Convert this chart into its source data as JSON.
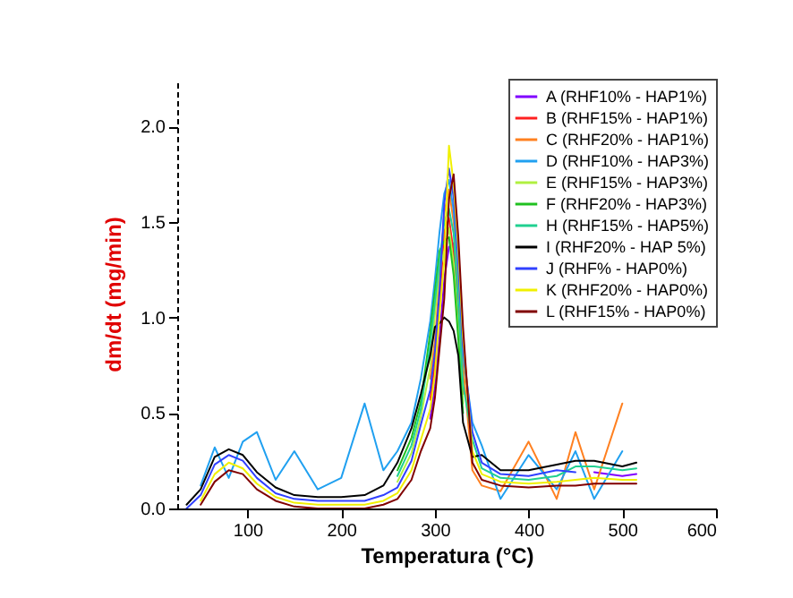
{
  "chart_data": {
    "type": "line",
    "xlabel": "Temperatura (°C)",
    "ylabel": "dm/dt (mg/min)",
    "x": [
      35,
      50,
      65,
      80,
      95,
      110,
      130,
      150,
      175,
      200,
      225,
      245,
      260,
      275,
      285,
      295,
      300,
      305,
      310,
      315,
      320,
      325,
      330,
      340,
      350,
      370,
      400,
      430,
      450,
      470,
      500,
      515
    ],
    "xlim": [
      25,
      600
    ],
    "xticks": [
      100,
      200,
      300,
      400,
      500,
      600
    ],
    "ylim": [
      0,
      2.25
    ],
    "yticks": [
      {
        "value": 0,
        "label": "0.0"
      },
      0.5,
      {
        "value": 1,
        "label": "1.0"
      },
      1.5,
      {
        "value": 2,
        "label": "2.0"
      }
    ],
    "legend": "top right",
    "marker": "none",
    "line_style": "solid",
    "grid": false,
    "series": [
      {
        "name": "A (RHF10% - HAP1%)",
        "color": "#8000ff",
        "values": [
          null,
          null,
          null,
          null,
          null,
          null,
          null,
          null,
          null,
          null,
          null,
          null,
          null,
          null,
          null,
          0.47,
          0.64,
          0.9,
          1.2,
          1.37,
          1.39,
          1.12,
          null,
          null,
          null,
          null,
          null,
          null,
          null,
          0.19,
          0.17,
          0.18
        ]
      },
      {
        "name": "B (RHF15% - HAP1%)",
        "color": "#ff2020",
        "values": [
          null,
          null,
          null,
          null,
          null,
          null,
          null,
          null,
          null,
          null,
          null,
          null,
          null,
          null,
          null,
          0.57,
          0.76,
          1.08,
          1.45,
          1.52,
          1.34,
          1.0,
          0.6,
          null,
          null,
          null,
          null,
          null,
          null,
          null,
          null,
          null
        ]
      },
      {
        "name": "C (RHF20% - HAP1%)",
        "color": "#ff8020",
        "values": [
          null,
          null,
          null,
          null,
          null,
          null,
          null,
          null,
          null,
          null,
          null,
          null,
          null,
          null,
          null,
          0.68,
          0.88,
          1.2,
          1.55,
          1.67,
          1.5,
          1.18,
          0.75,
          0.2,
          0.12,
          0.09,
          0.35,
          0.05,
          0.4,
          0.1,
          0.55,
          null
        ]
      },
      {
        "name": "D (RHF10% - HAP3%)",
        "color": "#20a0f0",
        "values": [
          null,
          0.12,
          0.32,
          0.16,
          0.35,
          0.4,
          0.15,
          0.3,
          0.1,
          0.16,
          0.55,
          0.2,
          0.3,
          0.45,
          0.68,
          0.98,
          1.2,
          1.45,
          1.65,
          1.72,
          1.56,
          1.24,
          0.8,
          0.45,
          0.33,
          0.05,
          0.28,
          0.1,
          0.3,
          0.05,
          0.3,
          null
        ]
      },
      {
        "name": "E (RHF15% - HAP3%)",
        "color": "#b0f040",
        "values": [
          null,
          null,
          null,
          null,
          null,
          null,
          null,
          null,
          null,
          null,
          null,
          null,
          0.14,
          0.29,
          0.48,
          0.74,
          1.02,
          1.25,
          1.35,
          1.47,
          1.28,
          0.94,
          0.55,
          null,
          null,
          null,
          null,
          null,
          null,
          null,
          null,
          null
        ]
      },
      {
        "name": "F (RHF20% - HAP3%)",
        "color": "#20c020",
        "values": [
          null,
          null,
          null,
          null,
          null,
          null,
          null,
          null,
          null,
          null,
          null,
          null,
          0.2,
          0.37,
          0.56,
          0.92,
          1.14,
          1.35,
          1.4,
          1.42,
          1.22,
          0.88,
          0.5,
          null,
          null,
          null,
          null,
          null,
          null,
          null,
          null,
          null
        ]
      },
      {
        "name": "H (RHF15% - HAP5%)",
        "color": "#20d090",
        "values": [
          null,
          null,
          null,
          null,
          null,
          null,
          null,
          null,
          null,
          null,
          null,
          null,
          0.17,
          0.33,
          0.52,
          0.86,
          1.08,
          1.3,
          1.5,
          1.57,
          1.44,
          1.06,
          0.65,
          0.36,
          0.21,
          0.16,
          0.15,
          0.17,
          0.22,
          0.22,
          0.2,
          0.21
        ]
      },
      {
        "name": "I (RHF20% - HAP 5%)",
        "color": "#000000",
        "values": [
          0.02,
          0.1,
          0.27,
          0.31,
          0.28,
          0.19,
          0.11,
          0.07,
          0.06,
          0.06,
          0.07,
          0.12,
          0.24,
          0.42,
          0.6,
          0.8,
          0.95,
          0.97,
          1.0,
          0.98,
          0.93,
          0.8,
          0.45,
          0.27,
          0.28,
          0.2,
          0.2,
          0.23,
          0.25,
          0.25,
          0.22,
          0.24
        ]
      },
      {
        "name": "J (RHF% - HAP0%)",
        "color": "#3040ff",
        "values": [
          0,
          0.07,
          0.23,
          0.28,
          0.25,
          0.16,
          0.08,
          0.05,
          0.04,
          0.04,
          0.04,
          0.07,
          0.11,
          0.25,
          0.44,
          0.62,
          0.82,
          1.14,
          1.6,
          1.78,
          1.63,
          1.3,
          0.85,
          0.4,
          0.24,
          0.18,
          0.17,
          0.2,
          0.19,
          null,
          null,
          null
        ]
      },
      {
        "name": "K (RHF20% - HAP0%)",
        "color": "#f0f000",
        "values": [
          null,
          0.04,
          0.18,
          0.24,
          0.21,
          0.13,
          0.06,
          0.03,
          0.02,
          0.02,
          0.02,
          0.04,
          0.08,
          0.2,
          0.36,
          0.52,
          0.7,
          1.02,
          1.3,
          1.9,
          1.7,
          1.36,
          0.9,
          0.3,
          0.18,
          0.14,
          0.13,
          0.14,
          0.15,
          0.16,
          0.15,
          0.15
        ]
      },
      {
        "name": "L (RHF15% - HAP0%)",
        "color": "#800000",
        "values": [
          null,
          0.02,
          0.14,
          0.2,
          0.18,
          0.1,
          0.04,
          0.01,
          0,
          0,
          0,
          0.02,
          0.05,
          0.15,
          0.3,
          0.42,
          0.58,
          0.84,
          1.1,
          1.62,
          1.75,
          1.42,
          0.95,
          0.24,
          0.15,
          0.12,
          0.11,
          0.12,
          0.12,
          0.13,
          0.13,
          0.13
        ]
      }
    ]
  }
}
